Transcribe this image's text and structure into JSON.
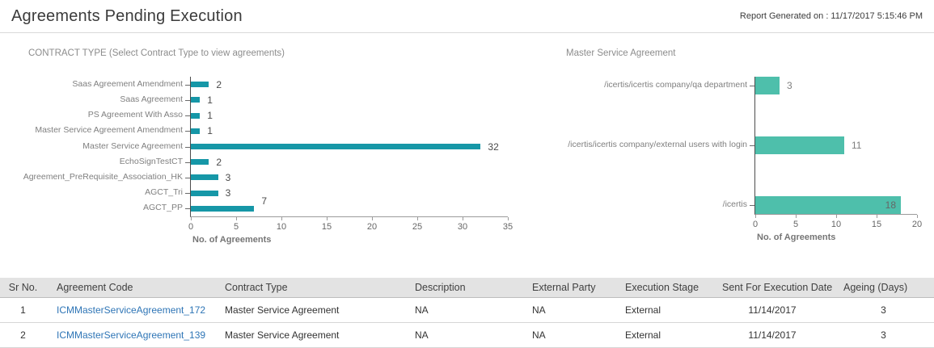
{
  "header": {
    "title": "Agreements Pending Execution",
    "report_generated": "Report Generated on : 11/17/2017 5:15:46 PM"
  },
  "chart_data": [
    {
      "type": "bar",
      "orientation": "horizontal",
      "title": "CONTRACT TYPE (Select Contract Type to view agreements)",
      "categories": [
        "Saas Agreement Amendment",
        "Saas Agreement",
        "PS Agreement With Asso",
        "Master Service Agreement Amendment",
        "Master Service Agreement",
        "EchoSignTestCT",
        "Agreement_PreRequisite_Association_HK",
        "AGCT_Tri",
        "AGCT_PP"
      ],
      "values": [
        2,
        1,
        1,
        1,
        32,
        2,
        3,
        3,
        7
      ],
      "xlabel": "No. of Agreements",
      "xlim": [
        0,
        35
      ],
      "xticks": [
        0,
        5,
        10,
        15,
        20,
        25,
        30,
        35
      ],
      "grid": false,
      "bar_color": "#1697A7",
      "value_label_color": "#4A4A4A"
    },
    {
      "type": "bar",
      "orientation": "horizontal",
      "title": "Master Service Agreement",
      "categories": [
        "/icertis/icertis company/qa department",
        "/icertis/icertis company/external users with login",
        "/icertis"
      ],
      "values": [
        3,
        11,
        18
      ],
      "xlabel": "No. of Agreements",
      "xlim": [
        0,
        20
      ],
      "xticks": [
        0,
        5,
        10,
        15,
        20
      ],
      "grid": false,
      "bar_color": "#4EBFAB",
      "value_label_color": "#7F7F7F"
    }
  ],
  "table": {
    "headers": [
      "Sr No.",
      "Agreement Code",
      "Contract Type",
      "Description",
      "External Party",
      "Execution Stage",
      "Sent For Execution Date",
      "Ageing (Days)"
    ],
    "rows": [
      [
        "1",
        "ICMMasterServiceAgreement_172",
        "Master Service Agreement",
        "NA",
        "NA",
        "External",
        "11/14/2017",
        "3"
      ],
      [
        "2",
        "ICMMasterServiceAgreement_139",
        "Master Service Agreement",
        "NA",
        "NA",
        "External",
        "11/14/2017",
        "3"
      ]
    ]
  }
}
